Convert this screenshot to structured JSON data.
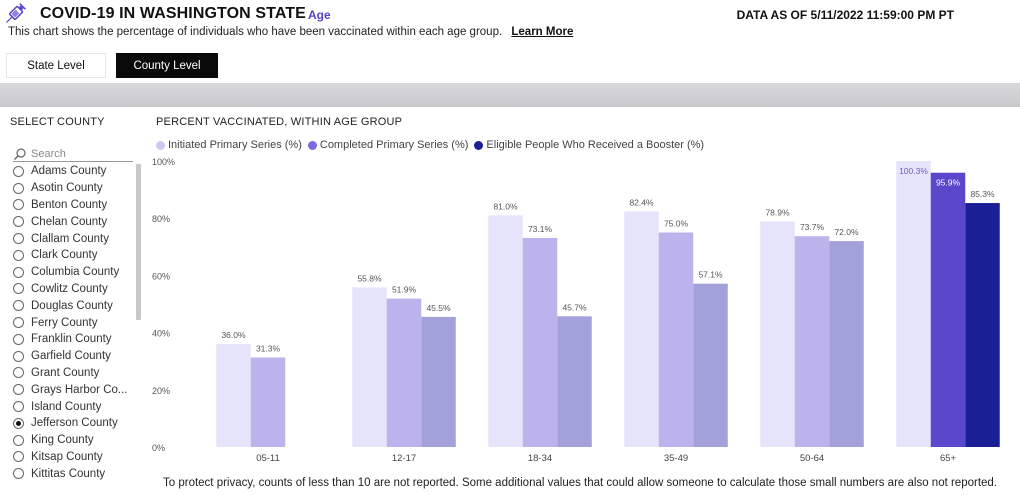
{
  "header": {
    "title": "COVID-19 IN WASHINGTON STATE",
    "subtitle": "Age",
    "data_as_of": "DATA AS OF 5/11/2022 11:59:00 PM PT",
    "description": "This chart shows the percentage of individuals who have been vaccinated within each age group.",
    "learn_more": "Learn More"
  },
  "tabs": [
    {
      "label": "State Level",
      "active": false
    },
    {
      "label": "County Level",
      "active": true
    }
  ],
  "slicer": {
    "title": "SELECT COUNTY",
    "search_placeholder": "Search",
    "counties": [
      {
        "name": "Adams County",
        "selected": false
      },
      {
        "name": "Asotin County",
        "selected": false
      },
      {
        "name": "Benton County",
        "selected": false
      },
      {
        "name": "Chelan County",
        "selected": false
      },
      {
        "name": "Clallam County",
        "selected": false
      },
      {
        "name": "Clark County",
        "selected": false
      },
      {
        "name": "Columbia County",
        "selected": false
      },
      {
        "name": "Cowlitz County",
        "selected": false
      },
      {
        "name": "Douglas County",
        "selected": false
      },
      {
        "name": "Ferry County",
        "selected": false
      },
      {
        "name": "Franklin County",
        "selected": false
      },
      {
        "name": "Garfield County",
        "selected": false
      },
      {
        "name": "Grant County",
        "selected": false
      },
      {
        "name": "Grays Harbor Co...",
        "selected": false
      },
      {
        "name": "Island County",
        "selected": false
      },
      {
        "name": "Jefferson County",
        "selected": true
      },
      {
        "name": "King County",
        "selected": false
      },
      {
        "name": "Kitsap County",
        "selected": false
      },
      {
        "name": "Kittitas County",
        "selected": false
      }
    ]
  },
  "chart_data": {
    "type": "bar",
    "title": "PERCENT VACCINATED, WITHIN AGE GROUP",
    "categories": [
      "05-11",
      "12-17",
      "18-34",
      "35-49",
      "50-64",
      "65+"
    ],
    "series": [
      {
        "name": "Initiated Primary Series (%)",
        "values": [
          36.0,
          55.8,
          81.0,
          82.4,
          78.9,
          100.3
        ],
        "labels": [
          "36.0%",
          "55.8%",
          "81.0%",
          "82.4%",
          "78.9%",
          "100.3%"
        ]
      },
      {
        "name": "Completed Primary Series (%)",
        "values": [
          31.3,
          51.9,
          73.1,
          75.0,
          73.7,
          95.9
        ],
        "labels": [
          "31.3%",
          "51.9%",
          "73.1%",
          "75.0%",
          "73.7%",
          "95.9%"
        ]
      },
      {
        "name": "Eligible People Who Received a Booster (%)",
        "values": [
          null,
          45.5,
          45.7,
          57.1,
          72.0,
          85.3
        ],
        "labels": [
          "",
          "45.5%",
          "45.7%",
          "57.1%",
          "72.0%",
          "85.3%"
        ]
      }
    ],
    "y_ticks": [
      "0%",
      "20%",
      "40%",
      "60%",
      "80%",
      "100%"
    ],
    "ylim": [
      0,
      100
    ],
    "highlight_category": "65+",
    "colors": {
      "muted": [
        "#e6e4fb",
        "#bcb3ec",
        "#a3a1d9"
      ],
      "highlight": [
        "#e6e4fb",
        "#5b47cc",
        "#1b1f96"
      ],
      "legend": [
        "#cdc7f3",
        "#7b6be0",
        "#1b1f96"
      ]
    }
  },
  "footnote": "To protect privacy, counts of less than 10 are not reported. Some additional values that could allow someone to calculate those small numbers are also not reported."
}
